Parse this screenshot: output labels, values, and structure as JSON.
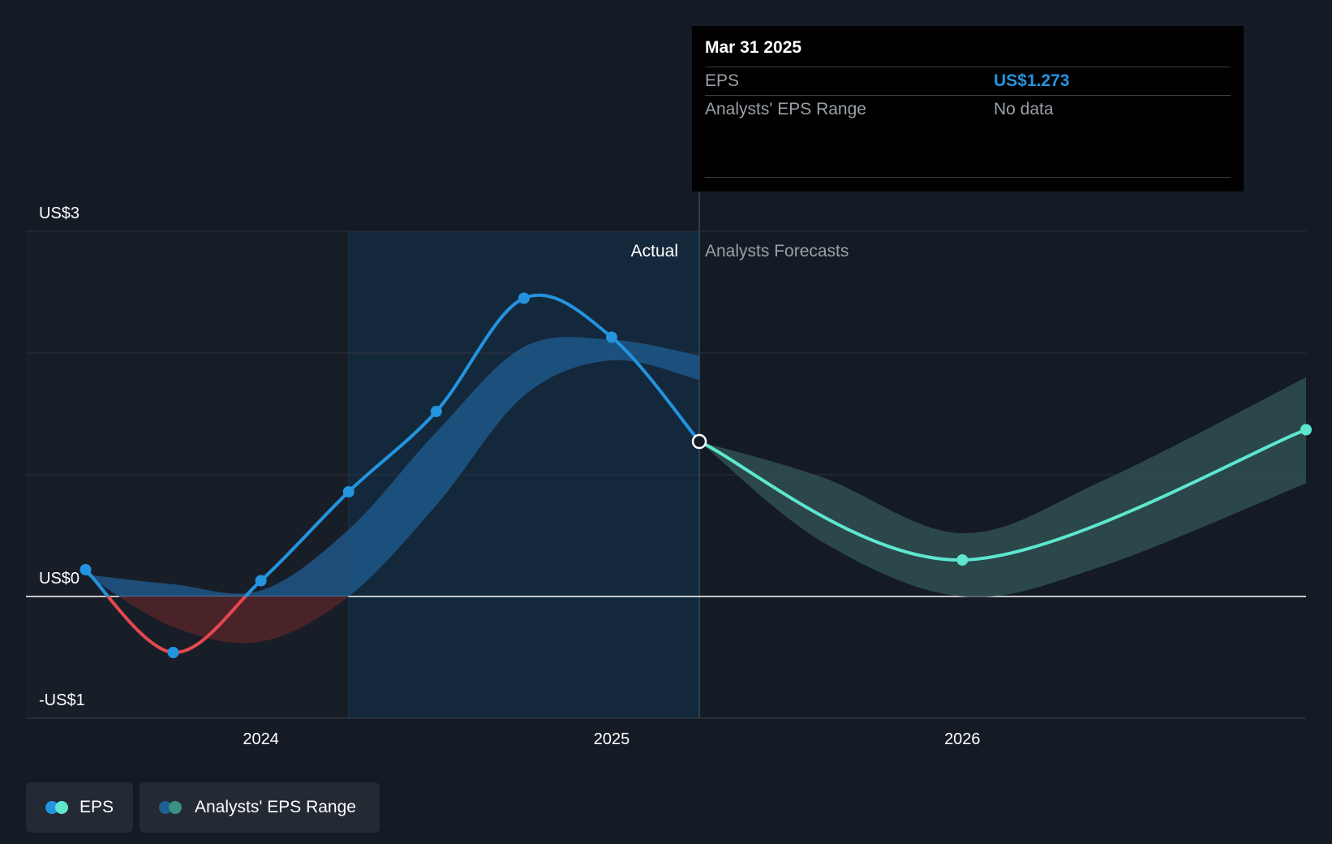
{
  "tooltip": {
    "date": "Mar 31 2025",
    "rows": [
      {
        "label": "EPS",
        "value": "US$1.273"
      },
      {
        "label": "Analysts' EPS Range",
        "value": "No data"
      }
    ]
  },
  "sections": {
    "actual": "Actual",
    "forecast": "Analysts Forecasts"
  },
  "legend": {
    "eps": "EPS",
    "range": "Analysts' EPS Range"
  },
  "colors": {
    "background": "#151b24",
    "eps_line": "#2394df",
    "eps_negative": "#e5484d",
    "forecast_line": "#5ee6cf",
    "past_band": "#1f5e93",
    "forecast_band": "#2f4f51",
    "negative_band": "#4a2329"
  },
  "chart_data": {
    "type": "line",
    "y_ticks": [
      {
        "value": 3,
        "label": "US$3"
      },
      {
        "value": 0,
        "label": "US$0"
      },
      {
        "value": -1,
        "label": "-US$1"
      }
    ],
    "x_ticks": [
      {
        "value": 2024.0,
        "label": "2024"
      },
      {
        "value": 2025.0,
        "label": "2025"
      },
      {
        "value": 2026.0,
        "label": "2026"
      }
    ],
    "xlim": [
      2023.33,
      2026.98
    ],
    "ylim": [
      -1,
      3
    ],
    "highlight_start": 2024.25,
    "divider": 2025.25,
    "series": [
      {
        "name": "EPS",
        "points": [
          {
            "x": 2023.5,
            "y": 0.22
          },
          {
            "x": 2023.75,
            "y": -0.46
          },
          {
            "x": 2024.0,
            "y": 0.13
          },
          {
            "x": 2024.25,
            "y": 0.86
          },
          {
            "x": 2024.5,
            "y": 1.52
          },
          {
            "x": 2024.75,
            "y": 2.45
          },
          {
            "x": 2025.0,
            "y": 2.13
          },
          {
            "x": 2025.25,
            "y": 1.273
          }
        ]
      },
      {
        "name": "EPS forecast",
        "points": [
          {
            "x": 2025.25,
            "y": 1.273
          },
          {
            "x": 2026.0,
            "y": 0.3
          },
          {
            "x": 2026.98,
            "y": 1.37
          }
        ]
      }
    ],
    "range_band_past": {
      "x": [
        2023.5,
        2023.75,
        2024.0,
        2024.25,
        2024.5,
        2024.75,
        2025.0,
        2025.25
      ],
      "low": [
        0.18,
        -0.25,
        -0.37,
        0.0,
        0.75,
        1.65,
        1.94,
        1.78
      ],
      "high": [
        0.18,
        0.1,
        0.05,
        0.55,
        1.35,
        2.05,
        2.11,
        1.98
      ]
    },
    "range_band_forecast": {
      "x": [
        2025.25,
        2025.6,
        2026.0,
        2026.4,
        2026.98
      ],
      "low": [
        1.273,
        0.45,
        0.0,
        0.25,
        0.93
      ],
      "high": [
        1.273,
        0.98,
        0.52,
        0.95,
        1.8
      ]
    }
  }
}
